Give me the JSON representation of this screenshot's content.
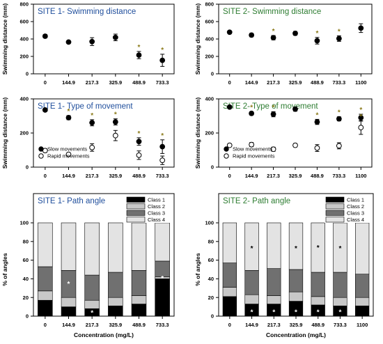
{
  "colors": {
    "site1_title": "#1f4e9c",
    "site2_title": "#2e7d32",
    "star": "#8b7a1a",
    "bar_star_light": "#ffffff",
    "bar_star_dark": "#000000"
  },
  "xlabel_bottom": "Concentration (mg/L)",
  "chart_data": [
    {
      "type": "scatter",
      "title": "SITE 1- Swimming distance",
      "ylabel": "Swimming distance (mm)",
      "categories": [
        "0",
        "144.9",
        "217.3",
        "325.9",
        "488.9",
        "733.3"
      ],
      "ylim": [
        0,
        800
      ],
      "yticks": [
        0,
        200,
        400,
        600,
        800
      ],
      "series": [
        {
          "marker": "filled",
          "values": [
            432,
            365,
            370,
            418,
            215,
            155
          ],
          "errors": [
            20,
            15,
            45,
            38,
            42,
            70
          ]
        }
      ],
      "significant": [
        false,
        false,
        false,
        false,
        true,
        true
      ]
    },
    {
      "type": "scatter",
      "title": "SITE 2- Swimming distance",
      "ylabel": "Swimming distance (mm)",
      "categories": [
        "0",
        "144.9",
        "217.3",
        "325.9",
        "488.9",
        "733.3",
        "1100"
      ],
      "ylim": [
        0,
        800
      ],
      "yticks": [
        0,
        200,
        400,
        600,
        800
      ],
      "series": [
        {
          "marker": "filled",
          "values": [
            478,
            445,
            415,
            465,
            380,
            405,
            525
          ],
          "errors": [
            15,
            20,
            25,
            22,
            38,
            32,
            50
          ]
        }
      ],
      "significant": [
        false,
        false,
        true,
        false,
        true,
        true,
        false
      ]
    },
    {
      "type": "scatter",
      "title": "SITE 1- Type of movement",
      "ylabel": "Swimming distance (mm)",
      "categories": [
        "0",
        "144.9",
        "217.3",
        "325.9",
        "488.9",
        "733.3"
      ],
      "ylim": [
        0,
        400
      ],
      "yticks": [
        0,
        200,
        400
      ],
      "series": [
        {
          "name": "Slow movements",
          "marker": "filled",
          "values": [
            335,
            290,
            260,
            265,
            150,
            120
          ],
          "errors": [
            8,
            12,
            18,
            18,
            22,
            40
          ],
          "significant": [
            false,
            true,
            true,
            true,
            true,
            true
          ]
        },
        {
          "name": "Rapid movements",
          "marker": "open",
          "values": [
            97,
            75,
            115,
            185,
            70,
            40
          ],
          "errors": [
            10,
            8,
            22,
            30,
            25,
            25
          ],
          "significant": [
            false,
            false,
            false,
            false,
            false,
            false
          ]
        }
      ],
      "legend": "bottom-left"
    },
    {
      "type": "scatter",
      "title": "SITE 2- Type of movement",
      "ylabel": "Swimming distance (mm)",
      "categories": [
        "0",
        "144.9",
        "217.3",
        "325.9",
        "488.9",
        "733.3",
        "1100"
      ],
      "ylim": [
        0,
        400
      ],
      "yticks": [
        0,
        200,
        400
      ],
      "series": [
        {
          "name": "Slow movements",
          "marker": "filled",
          "values": [
            352,
            315,
            310,
            340,
            265,
            283,
            290
          ],
          "errors": [
            8,
            10,
            15,
            12,
            15,
            12,
            20
          ],
          "significant": [
            false,
            true,
            true,
            false,
            true,
            true,
            true
          ]
        },
        {
          "name": "Rapid movements",
          "marker": "open",
          "values": [
            128,
            132,
            105,
            128,
            112,
            125,
            232
          ],
          "errors": [
            8,
            12,
            12,
            10,
            20,
            18,
            40
          ],
          "significant": [
            false,
            false,
            false,
            false,
            false,
            false,
            true
          ]
        }
      ],
      "legend": "bottom-left"
    },
    {
      "type": "bar",
      "stacked": true,
      "title": "SITE 1- Path angle",
      "ylabel": "% of angles",
      "categories": [
        "0",
        "144.9",
        "217.3",
        "325.9",
        "488.9",
        "733.3"
      ],
      "ylim": [
        0,
        100
      ],
      "yticks": [
        0,
        20,
        40,
        60,
        80,
        100
      ],
      "series": [
        {
          "name": "Class 1",
          "color": "#000000",
          "values": [
            17,
            10,
            8,
            11,
            13,
            40
          ]
        },
        {
          "name": "Class 2",
          "color": "#c8c8c8",
          "values": [
            10,
            10,
            9,
            9,
            9,
            2
          ]
        },
        {
          "name": "Class 3",
          "color": "#707070",
          "values": [
            26,
            29,
            27,
            27,
            27,
            17
          ]
        },
        {
          "name": "Class 4",
          "color": "#e3e3e3",
          "values": [
            47,
            51,
            56,
            53,
            51,
            41
          ]
        }
      ],
      "stars": [
        {
          "index": 1,
          "value": 35,
          "color": "light"
        },
        {
          "index": 2,
          "value": 4,
          "color": "light"
        },
        {
          "index": 5,
          "value": 41,
          "color": "light"
        }
      ],
      "legend": "top-right"
    },
    {
      "type": "bar",
      "stacked": true,
      "title": "SITE 2- Path angle",
      "ylabel": "% of angles",
      "categories": [
        "0",
        "144.9",
        "217.3",
        "325.9",
        "488.9",
        "733.3",
        "1100"
      ],
      "ylim": [
        0,
        100
      ],
      "yticks": [
        0,
        20,
        40,
        60,
        80,
        100
      ],
      "series": [
        {
          "name": "Class 1",
          "color": "#000000",
          "values": [
            21,
            13,
            13,
            16,
            12,
            11,
            11
          ]
        },
        {
          "name": "Class 2",
          "color": "#c8c8c8",
          "values": [
            10,
            10,
            9,
            10,
            9,
            9,
            9
          ]
        },
        {
          "name": "Class 3",
          "color": "#707070",
          "values": [
            26,
            26,
            29,
            24,
            26,
            27,
            25
          ]
        },
        {
          "name": "Class 4",
          "color": "#e3e3e3",
          "values": [
            43,
            51,
            49,
            50,
            53,
            53,
            55
          ]
        }
      ],
      "stars": [
        {
          "index": 1,
          "value": 73,
          "color": "dark"
        },
        {
          "index": 1,
          "value": 5,
          "color": "light"
        },
        {
          "index": 2,
          "value": 5,
          "color": "light"
        },
        {
          "index": 3,
          "value": 73,
          "color": "dark"
        },
        {
          "index": 3,
          "value": 5,
          "color": "light"
        },
        {
          "index": 4,
          "value": 74,
          "color": "dark"
        },
        {
          "index": 4,
          "value": 5,
          "color": "light"
        },
        {
          "index": 5,
          "value": 73,
          "color": "dark"
        },
        {
          "index": 5,
          "value": 5,
          "color": "light"
        }
      ],
      "legend": "top-right"
    }
  ]
}
